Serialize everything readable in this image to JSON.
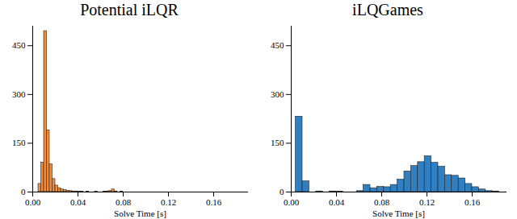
{
  "chart_data": [
    {
      "type": "histogram",
      "title": "Potential iLQR",
      "x_label": "Solve Time [s]",
      "color": "#f28c3a",
      "bins": [
        0.005,
        0.0075,
        0.01,
        0.0125,
        0.015,
        0.0175,
        0.02,
        0.0225,
        0.025,
        0.0275,
        0.03,
        0.0325,
        0.035,
        0.0375,
        0.04,
        0.0425,
        0.045,
        0.0475,
        0.05,
        0.0525,
        0.055,
        0.0575,
        0.06,
        0.0625,
        0.065,
        0.0675,
        0.07,
        0.0725,
        0.075,
        0.0775,
        0.08
      ],
      "values": [
        25,
        90,
        495,
        190,
        85,
        40,
        20,
        12,
        8,
        6,
        4,
        3,
        2,
        2,
        1,
        1,
        0,
        1,
        0,
        0,
        1,
        0,
        0,
        1,
        2,
        3,
        8,
        2,
        0,
        1
      ],
      "xlim": [
        0,
        0.19
      ],
      "xticks": [
        {
          "value": 0,
          "label": "0.00"
        },
        {
          "value": 0.04,
          "label": "0.04"
        },
        {
          "value": 0.08,
          "label": "0.08"
        },
        {
          "value": 0.12,
          "label": "0.12"
        },
        {
          "value": 0.16,
          "label": "0.16"
        }
      ],
      "ylim": [
        0,
        510
      ],
      "yticks": [
        0,
        150,
        300,
        450
      ]
    },
    {
      "type": "histogram",
      "title": "iLQGames",
      "x_label": "Solve Time [s]",
      "color": "#2f7fc1",
      "bins": [
        0.004,
        0.01,
        0.016,
        0.022,
        0.028,
        0.034,
        0.04,
        0.046,
        0.052,
        0.058,
        0.064,
        0.07,
        0.076,
        0.082,
        0.088,
        0.094,
        0.1,
        0.106,
        0.112,
        0.118,
        0.124,
        0.13,
        0.136,
        0.142,
        0.148,
        0.154,
        0.16,
        0.166,
        0.172,
        0.178,
        0.184,
        0.19,
        0.196
      ],
      "values": [
        232,
        33,
        0,
        2,
        0,
        2,
        1,
        0,
        0,
        3,
        22,
        12,
        16,
        15,
        22,
        38,
        63,
        80,
        92,
        110,
        90,
        78,
        52,
        50,
        42,
        25,
        15,
        8,
        3,
        2,
        0,
        1
      ],
      "xlim": [
        0,
        0.19
      ],
      "xticks": [
        {
          "value": 0,
          "label": "0.00"
        },
        {
          "value": 0.04,
          "label": "0.04"
        },
        {
          "value": 0.08,
          "label": "0.08"
        },
        {
          "value": 0.12,
          "label": "0.12"
        },
        {
          "value": 0.16,
          "label": "0.16"
        }
      ],
      "ylim": [
        0,
        510
      ],
      "yticks": [
        0,
        150,
        300,
        450
      ]
    }
  ]
}
